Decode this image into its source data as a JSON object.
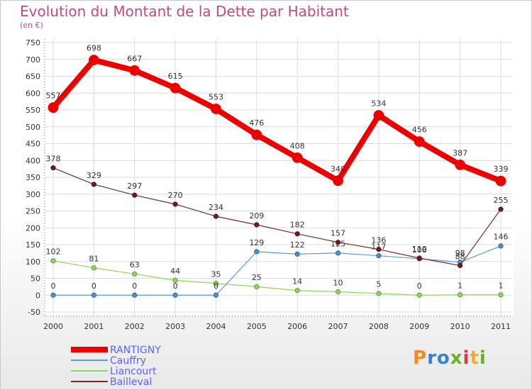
{
  "title": "Evolution du Montant de la Dette par Habitant",
  "subtitle": "(en €)",
  "logo_text": "Proxiti",
  "chart_data": {
    "type": "line",
    "title": "Evolution du Montant de la Dette par Habitant",
    "ylabel": "(en €)",
    "x": [
      "2000",
      "2001",
      "2002",
      "2003",
      "2004",
      "2005",
      "2006",
      "2007",
      "2008",
      "2009",
      "2010",
      "2011"
    ],
    "ylim": [
      -50,
      750
    ],
    "yticks": [
      -50,
      0,
      50,
      100,
      150,
      200,
      250,
      300,
      350,
      400,
      450,
      500,
      550,
      600,
      650,
      700,
      750
    ],
    "grid": true,
    "legend_position": "bottom-left",
    "series": [
      {
        "name": "RANTIGNY",
        "color": "#ee0000",
        "values": [
          557,
          698,
          667,
          615,
          553,
          476,
          408,
          340,
          534,
          456,
          387,
          339
        ]
      },
      {
        "name": "Cauffry",
        "color": "#5a9bd5",
        "values": [
          0,
          0,
          0,
          0,
          0,
          129,
          122,
          125,
          117,
          108,
          98,
          146
        ]
      },
      {
        "name": "Liancourt",
        "color": "#90d65a",
        "values": [
          102,
          81,
          63,
          44,
          35,
          25,
          14,
          10,
          5,
          0,
          1,
          1
        ]
      },
      {
        "name": "Bailleval",
        "color": "#7a2a2a",
        "values": [
          378,
          329,
          297,
          270,
          234,
          209,
          182,
          157,
          136,
          110,
          88,
          255
        ]
      }
    ]
  }
}
